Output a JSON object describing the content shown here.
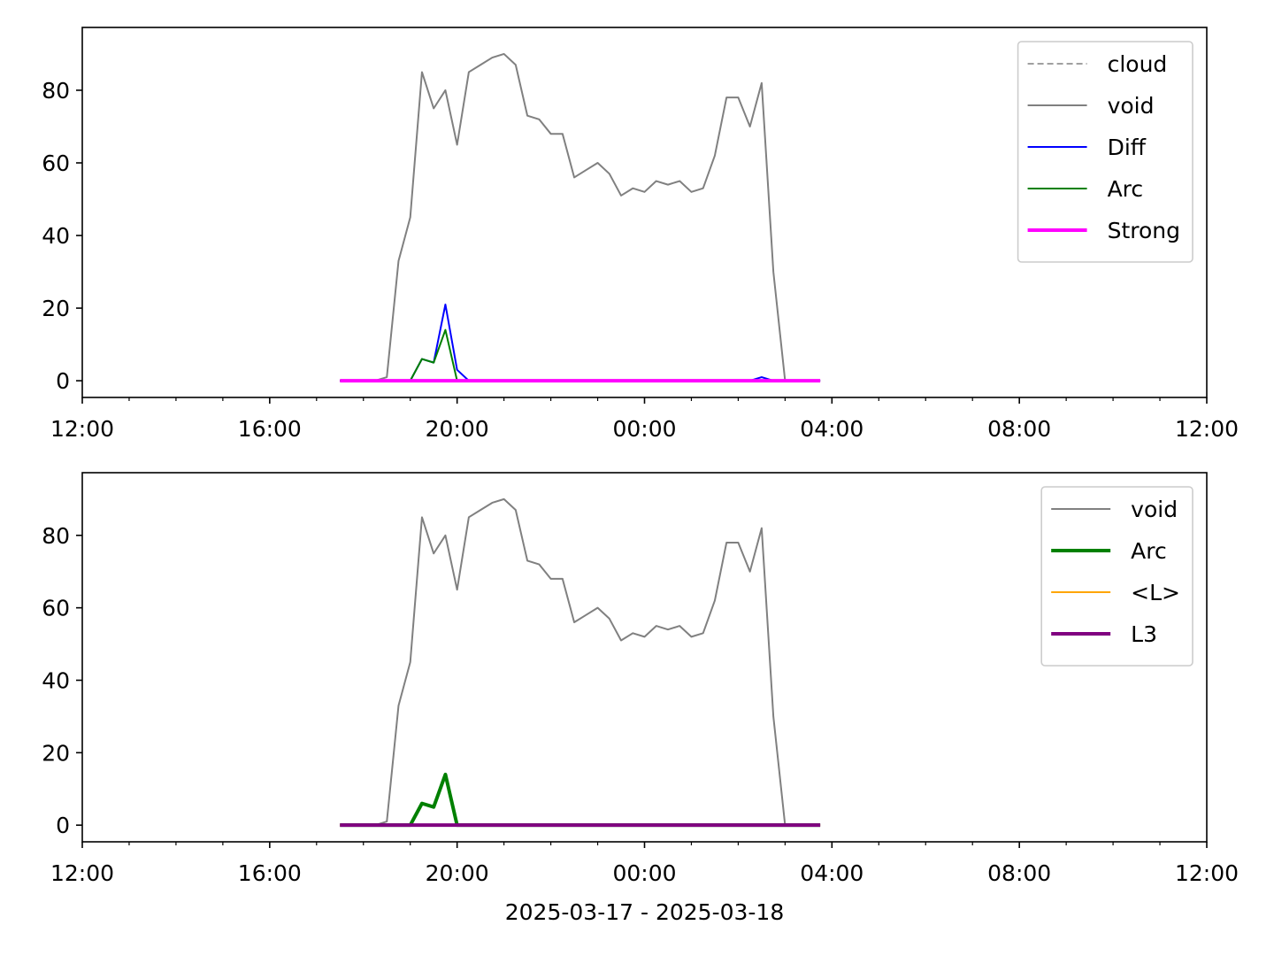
{
  "chart_data": [
    {
      "type": "line",
      "x": [
        17.5,
        17.75,
        18,
        18.25,
        18.5,
        18.75,
        19,
        19.25,
        19.5,
        19.75,
        20,
        20.25,
        20.5,
        20.75,
        21,
        21.25,
        21.5,
        21.75,
        22,
        22.25,
        22.5,
        22.75,
        23,
        23.25,
        23.5,
        23.75,
        24,
        24.25,
        24.5,
        24.75,
        25,
        25.25,
        25.5,
        25.75,
        26,
        26.25,
        26.5,
        26.75,
        27,
        27.25,
        27.5,
        27.75
      ],
      "series": [
        {
          "name": "cloud",
          "color": "#808080",
          "linestyle": "dashed",
          "linewidth": 1.5,
          "values": [
            null,
            null,
            null,
            null,
            null,
            null,
            null,
            null,
            null,
            null,
            null,
            null,
            null,
            null,
            null,
            null,
            null,
            null,
            null,
            null,
            null,
            null,
            null,
            null,
            null,
            null,
            null,
            null,
            null,
            null,
            null,
            null,
            null,
            null,
            null,
            null,
            null,
            null,
            null,
            null,
            null,
            null
          ]
        },
        {
          "name": "void",
          "color": "#808080",
          "linestyle": "solid",
          "linewidth": 2,
          "values": [
            0,
            0,
            0,
            0,
            1,
            33,
            45,
            85,
            75,
            80,
            65,
            85,
            87,
            89,
            90,
            87,
            73,
            72,
            68,
            68,
            56,
            58,
            60,
            57,
            51,
            53,
            52,
            55,
            54,
            55,
            52,
            53,
            62,
            78,
            78,
            70,
            82,
            30,
            0,
            0,
            0,
            0
          ]
        },
        {
          "name": "Diff",
          "color": "#0000ff",
          "linestyle": "solid",
          "linewidth": 2,
          "values": [
            0,
            0,
            0,
            0,
            0,
            0,
            0,
            6,
            5,
            21,
            3,
            0,
            0,
            0,
            0,
            0,
            0,
            0,
            0,
            0,
            0,
            0,
            0,
            0,
            0,
            0,
            0,
            0,
            0,
            0,
            0,
            0,
            0,
            0,
            0,
            0,
            1,
            0,
            0,
            0,
            0,
            0
          ]
        },
        {
          "name": "Arc",
          "color": "#008000",
          "linestyle": "solid",
          "linewidth": 2,
          "values": [
            0,
            0,
            0,
            0,
            0,
            0,
            0,
            6,
            5,
            14,
            0,
            0,
            0,
            0,
            0,
            0,
            0,
            0,
            0,
            0,
            0,
            0,
            0,
            0,
            0,
            0,
            0,
            0,
            0,
            0,
            0,
            0,
            0,
            0,
            0,
            0,
            0,
            0,
            0,
            0,
            0,
            0
          ]
        },
        {
          "name": "Strong",
          "color": "#ff00ff",
          "linestyle": "solid",
          "linewidth": 4,
          "values": [
            0,
            0,
            0,
            0,
            0,
            0,
            0,
            0,
            0,
            0,
            0,
            0,
            0,
            0,
            0,
            0,
            0,
            0,
            0,
            0,
            0,
            0,
            0,
            0,
            0,
            0,
            0,
            0,
            0,
            0,
            0,
            0,
            0,
            0,
            0,
            0,
            0,
            0,
            0,
            0,
            0,
            0
          ]
        }
      ],
      "xlim": [
        12,
        36
      ],
      "ylim": [
        -4.6,
        97.3
      ],
      "xticks": [
        {
          "value": 12,
          "label": "12:00"
        },
        {
          "value": 16,
          "label": "16:00"
        },
        {
          "value": 20,
          "label": "20:00"
        },
        {
          "value": 24,
          "label": "00:00"
        },
        {
          "value": 28,
          "label": "04:00"
        },
        {
          "value": 32,
          "label": "08:00"
        },
        {
          "value": 36,
          "label": "12:00"
        }
      ],
      "xminorticks": [
        13,
        14,
        15,
        17,
        18,
        19,
        21,
        22,
        23,
        25,
        26,
        27,
        29,
        30,
        31,
        33,
        34,
        35
      ],
      "yticks": [
        0,
        20,
        40,
        60,
        80
      ],
      "grid": false,
      "legend": "upper right"
    },
    {
      "type": "line",
      "xlabel": "2025-03-17 - 2025-03-18",
      "x": [
        17.5,
        17.75,
        18,
        18.25,
        18.5,
        18.75,
        19,
        19.25,
        19.5,
        19.75,
        20,
        20.25,
        20.5,
        20.75,
        21,
        21.25,
        21.5,
        21.75,
        22,
        22.25,
        22.5,
        22.75,
        23,
        23.25,
        23.5,
        23.75,
        24,
        24.25,
        24.5,
        24.75,
        25,
        25.25,
        25.5,
        25.75,
        26,
        26.25,
        26.5,
        26.75,
        27,
        27.25,
        27.5,
        27.75
      ],
      "series": [
        {
          "name": "void",
          "color": "#808080",
          "linestyle": "solid",
          "linewidth": 2,
          "values": [
            0,
            0,
            0,
            0,
            1,
            33,
            45,
            85,
            75,
            80,
            65,
            85,
            87,
            89,
            90,
            87,
            73,
            72,
            68,
            68,
            56,
            58,
            60,
            57,
            51,
            53,
            52,
            55,
            54,
            55,
            52,
            53,
            62,
            78,
            78,
            70,
            82,
            30,
            0,
            0,
            0,
            0
          ]
        },
        {
          "name": "Arc",
          "color": "#008000",
          "linestyle": "solid",
          "linewidth": 4,
          "values": [
            0,
            0,
            0,
            0,
            0,
            0,
            0,
            6,
            5,
            14,
            0,
            0,
            0,
            0,
            0,
            0,
            0,
            0,
            0,
            0,
            0,
            0,
            0,
            0,
            0,
            0,
            0,
            0,
            0,
            0,
            0,
            0,
            0,
            0,
            0,
            0,
            0,
            0,
            0,
            0,
            0,
            0
          ]
        },
        {
          "name": "<L>",
          "color": "#ffa500",
          "linestyle": "solid",
          "linewidth": 2,
          "values": [
            0,
            0,
            0,
            0,
            0,
            0,
            0,
            0,
            0,
            0,
            0,
            0,
            0,
            0,
            0,
            0,
            0,
            0,
            0,
            0,
            0,
            0,
            0,
            0,
            0,
            0,
            0,
            0,
            0,
            0,
            0,
            0,
            0,
            0,
            0,
            0,
            0,
            0,
            0,
            0,
            0,
            0
          ]
        },
        {
          "name": "L3",
          "color": "#800080",
          "linestyle": "solid",
          "linewidth": 4,
          "values": [
            0,
            0,
            0,
            0,
            0,
            0,
            0,
            0,
            0,
            0,
            0,
            0,
            0,
            0,
            0,
            0,
            0,
            0,
            0,
            0,
            0,
            0,
            0,
            0,
            0,
            0,
            0,
            0,
            0,
            0,
            0,
            0,
            0,
            0,
            0,
            0,
            0,
            0,
            0,
            0,
            0,
            0
          ]
        }
      ],
      "xlim": [
        12,
        36
      ],
      "ylim": [
        -4.6,
        97.3
      ],
      "xticks": [
        {
          "value": 12,
          "label": "12:00"
        },
        {
          "value": 16,
          "label": "16:00"
        },
        {
          "value": 20,
          "label": "20:00"
        },
        {
          "value": 24,
          "label": "00:00"
        },
        {
          "value": 28,
          "label": "04:00"
        },
        {
          "value": 32,
          "label": "08:00"
        },
        {
          "value": 36,
          "label": "12:00"
        }
      ],
      "xminorticks": [
        13,
        14,
        15,
        17,
        18,
        19,
        21,
        22,
        23,
        25,
        26,
        27,
        29,
        30,
        31,
        33,
        34,
        35
      ],
      "yticks": [
        0,
        20,
        40,
        60,
        80
      ],
      "grid": false,
      "legend": "upper right"
    }
  ]
}
